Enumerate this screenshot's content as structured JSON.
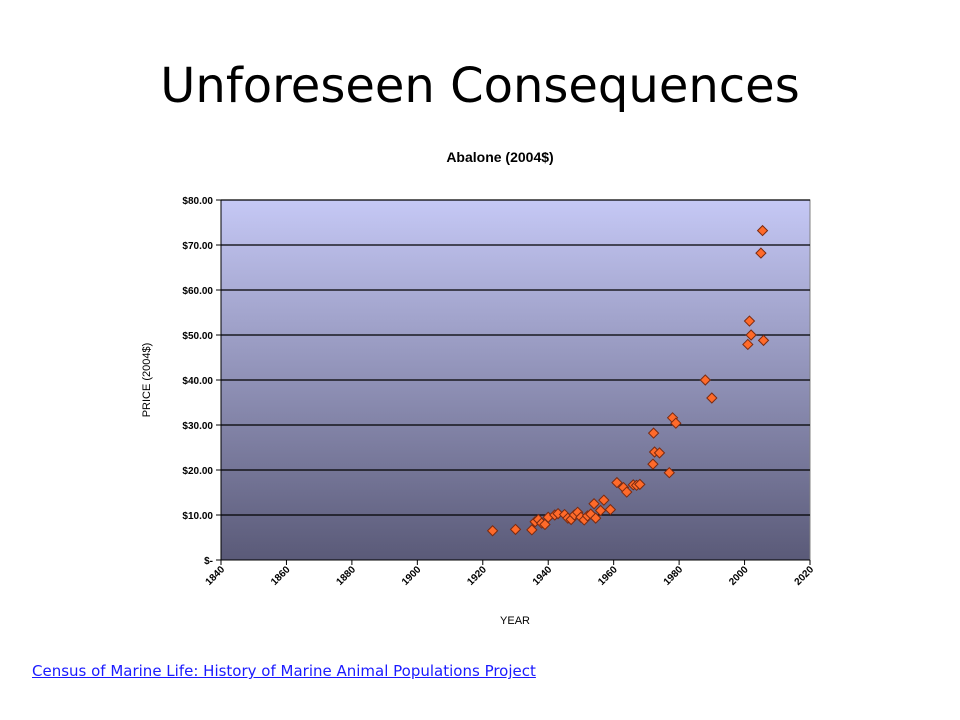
{
  "slide": {
    "title": "Unforeseen Consequences",
    "source_link": "Census of Marine Life: History of Marine Animal Populations Project"
  },
  "colors": {
    "plot_top": "#c5c8f5",
    "plot_bottom": "#5a5a78",
    "marker_fill": "#ff6a2a",
    "marker_stroke": "#7a2a10",
    "link": "#1a1aff"
  },
  "chart_data": {
    "type": "scatter",
    "title": "Abalone (2004$)",
    "xlabel": "YEAR",
    "ylabel": "PRICE (2004$)",
    "xlim": [
      1840,
      2020
    ],
    "ylim": [
      0,
      80
    ],
    "x_ticks": [
      1840,
      1860,
      1880,
      1900,
      1920,
      1940,
      1960,
      1980,
      2000,
      2020
    ],
    "y_ticks": [
      0,
      10,
      20,
      30,
      40,
      50,
      60,
      70,
      80
    ],
    "y_tick_labels": [
      "$-",
      "$10.00",
      "$20.00",
      "$30.00",
      "$40.00",
      "$50.00",
      "$60.00",
      "$70.00",
      "$80.00"
    ],
    "grid": true,
    "legend": "none",
    "points": [
      {
        "x": 1923,
        "y": 6.5
      },
      {
        "x": 1930,
        "y": 6.8
      },
      {
        "x": 1935,
        "y": 6.7
      },
      {
        "x": 1936,
        "y": 8.5
      },
      {
        "x": 1937,
        "y": 9.0
      },
      {
        "x": 1938,
        "y": 8.2
      },
      {
        "x": 1939,
        "y": 7.9
      },
      {
        "x": 1940,
        "y": 9.5
      },
      {
        "x": 1942,
        "y": 10.0
      },
      {
        "x": 1943,
        "y": 10.3
      },
      {
        "x": 1945,
        "y": 10.1
      },
      {
        "x": 1946,
        "y": 9.3
      },
      {
        "x": 1947,
        "y": 9.0
      },
      {
        "x": 1948,
        "y": 10.0
      },
      {
        "x": 1949,
        "y": 10.6
      },
      {
        "x": 1950,
        "y": 9.5
      },
      {
        "x": 1951,
        "y": 8.9
      },
      {
        "x": 1952,
        "y": 9.8
      },
      {
        "x": 1953,
        "y": 10.2
      },
      {
        "x": 1954,
        "y": 12.5
      },
      {
        "x": 1954.5,
        "y": 9.3
      },
      {
        "x": 1956,
        "y": 11.0
      },
      {
        "x": 1957,
        "y": 13.3
      },
      {
        "x": 1959,
        "y": 11.2
      },
      {
        "x": 1961,
        "y": 17.2
      },
      {
        "x": 1963,
        "y": 16.1
      },
      {
        "x": 1964,
        "y": 15.1
      },
      {
        "x": 1966,
        "y": 16.7
      },
      {
        "x": 1967,
        "y": 16.6
      },
      {
        "x": 1968,
        "y": 16.8
      },
      {
        "x": 1972,
        "y": 21.3
      },
      {
        "x": 1972.5,
        "y": 24.0
      },
      {
        "x": 1972.2,
        "y": 28.2
      },
      {
        "x": 1974,
        "y": 23.8
      },
      {
        "x": 1977,
        "y": 19.4
      },
      {
        "x": 1978,
        "y": 31.6
      },
      {
        "x": 1979,
        "y": 30.4
      },
      {
        "x": 1988,
        "y": 40.0
      },
      {
        "x": 1990,
        "y": 36.0
      },
      {
        "x": 2001,
        "y": 47.9
      },
      {
        "x": 2001.5,
        "y": 53.1
      },
      {
        "x": 2002,
        "y": 50.0
      },
      {
        "x": 2005,
        "y": 68.2
      },
      {
        "x": 2005.5,
        "y": 73.2
      },
      {
        "x": 2005.8,
        "y": 48.8
      }
    ]
  }
}
